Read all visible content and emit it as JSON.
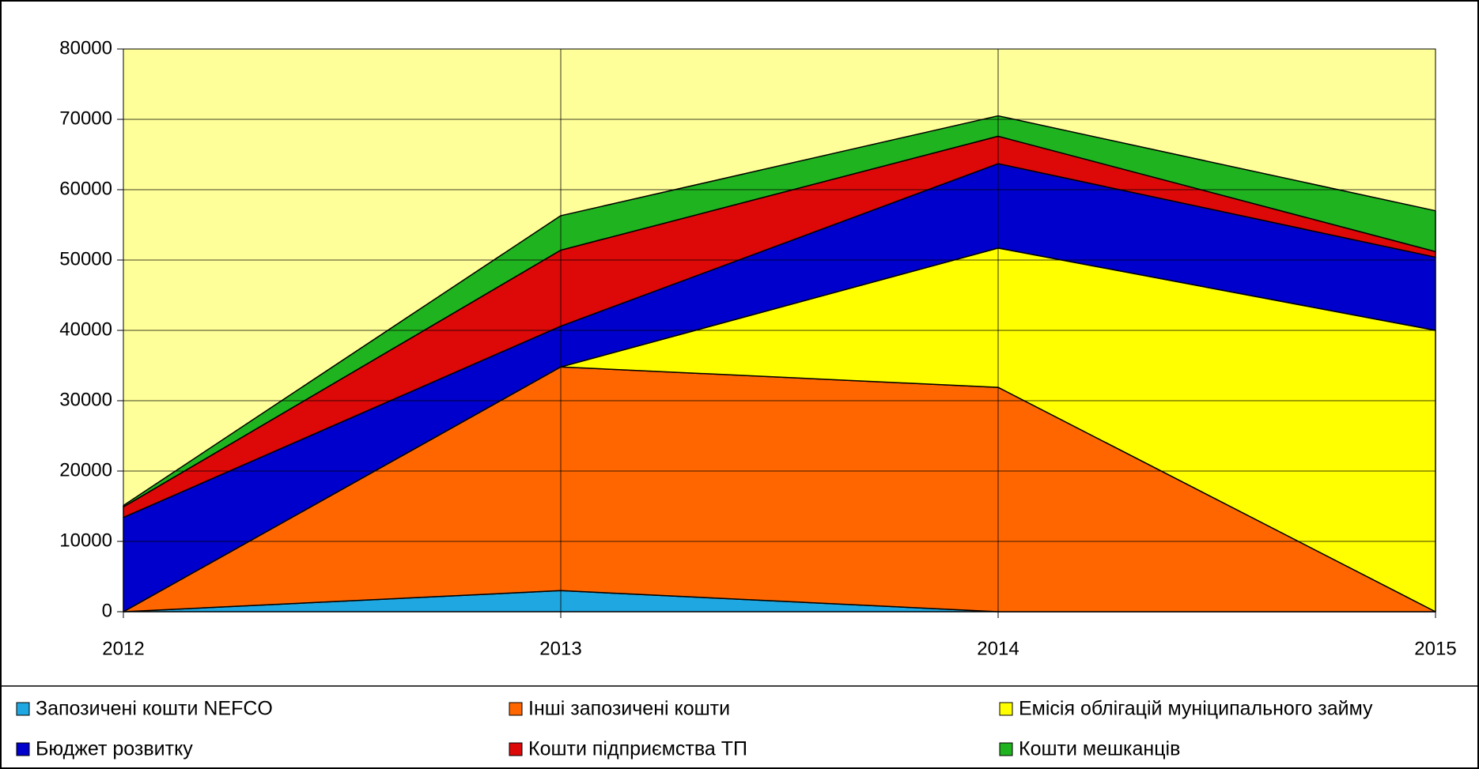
{
  "chart_data": {
    "type": "stacked_area",
    "categories": [
      "2012",
      "2013",
      "2014",
      "2015"
    ],
    "series": [
      {
        "name": "Запозичені кошти NEFCO",
        "color": "#1ea7e0",
        "values": [
          0,
          3000,
          0,
          0
        ]
      },
      {
        "name": "Інші запозичені кошти",
        "color": "#ff6600",
        "values": [
          0,
          31800,
          31900,
          0
        ]
      },
      {
        "name": "Емісія облігацій муніципального займу",
        "color": "#ffff00",
        "values": [
          0,
          0,
          19800,
          40000
        ]
      },
      {
        "name": "Бюджет розвитку",
        "color": "#0000cc",
        "values": [
          13400,
          5800,
          12000,
          10400
        ]
      },
      {
        "name": "Кошти підприємства ТП",
        "color": "#dd0808",
        "values": [
          1500,
          10800,
          3900,
          800
        ]
      },
      {
        "name": "Кошти мешканців",
        "color": "#1fb31f",
        "values": [
          200,
          4900,
          2900,
          5800
        ]
      }
    ],
    "ylim": [
      0,
      80000
    ],
    "yticks": [
      0,
      10000,
      20000,
      30000,
      40000,
      50000,
      60000,
      70000,
      80000
    ],
    "grid": true,
    "plot_background": "#ffff99"
  }
}
